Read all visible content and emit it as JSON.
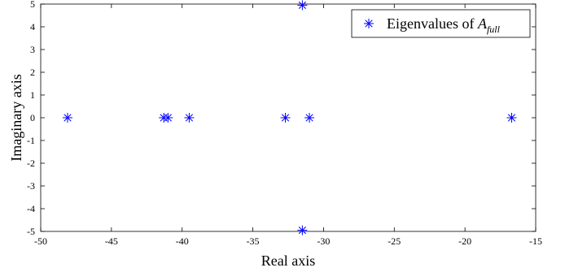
{
  "chart_data": {
    "type": "scatter",
    "xlabel": "Real axis",
    "ylabel": "Imaginary axis",
    "xlim": [
      -50,
      -15
    ],
    "ylim": [
      -5,
      5
    ],
    "xticks": [
      -50,
      -45,
      -40,
      -35,
      -30,
      -25,
      -20,
      -15
    ],
    "yticks": [
      -5,
      -4,
      -3,
      -2,
      -1,
      0,
      1,
      2,
      3,
      4,
      5
    ],
    "grid": false,
    "legend_position": "top-right",
    "series": [
      {
        "name": "Eigenvalues of A_full",
        "name_main": "Eigenvalues of ",
        "name_symbol": "A",
        "name_subscript": "full",
        "marker": "asterisk",
        "color": "#0000ff",
        "points": [
          {
            "x": -48.1,
            "y": 0
          },
          {
            "x": -41.3,
            "y": 0
          },
          {
            "x": -41.0,
            "y": 0
          },
          {
            "x": -39.5,
            "y": 0
          },
          {
            "x": -32.7,
            "y": 0
          },
          {
            "x": -31.0,
            "y": 0
          },
          {
            "x": -31.5,
            "y": 4.95
          },
          {
            "x": -31.5,
            "y": -4.95
          },
          {
            "x": -16.7,
            "y": 0
          }
        ]
      }
    ]
  }
}
